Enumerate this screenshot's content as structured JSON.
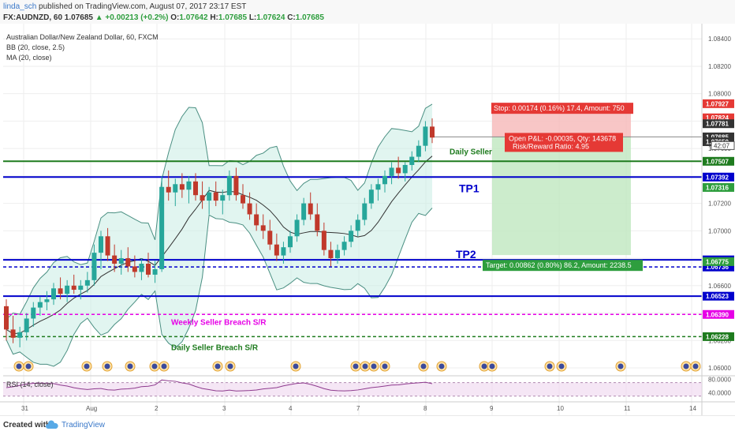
{
  "header": {
    "user": "linda_sch",
    "published": "published on TradingView.com, August 07, 2017 23:17 EST",
    "symbol": "FX:AUDNZD, 60",
    "price": "1.07685",
    "change": "+0.00213 (+0.2%)",
    "ohlc_o_label": "O:",
    "ohlc_o": "1.07642",
    "ohlc_h_label": "H:",
    "ohlc_h": "1.07685",
    "ohlc_l_label": "L:",
    "ohlc_l": "1.07624",
    "ohlc_c_label": "C:",
    "ohlc_c": "1.07685"
  },
  "legend": {
    "title": "Australian Dollar/New Zealand Dollar, 60, FXCM",
    "bb": "BB (20, close, 2.5)",
    "ma": "MA (20, close)",
    "rsi": "RSI (14, close)"
  },
  "footer": {
    "created": "Created with",
    "brand": "TradingView"
  },
  "colors": {
    "up": "#26a69a",
    "down": "#c0392b",
    "bb_fill": "#c9ece4",
    "bb_line": "#4a8f82",
    "ma": "#333333",
    "blue": "#0000cc",
    "green": "#1e7b1e",
    "magenta": "#e600e6",
    "stop_zone": "#f6b8b8",
    "target_zone": "#bfe7bf",
    "rsi_line": "#8e3b8e"
  },
  "chart_data": {
    "type": "candlestick",
    "y_axis": {
      "range": [
        1.06,
        1.0843
      ],
      "ticks": [
        "1.08400",
        "1.08200",
        "1.08000",
        "1.07800",
        "1.07600",
        "1.07400",
        "1.07200",
        "1.07000",
        "1.06800",
        "1.06600",
        "1.06400",
        "1.06200",
        "1.06000"
      ]
    },
    "x_axis": {
      "labels": [
        "31",
        "Aug",
        "2",
        "3",
        "4",
        "7",
        "8",
        "9",
        "10",
        "11",
        "14"
      ]
    },
    "levels": [
      {
        "name": "Daily Seller",
        "price": 1.07507,
        "label": "1.07507",
        "style": "solid",
        "color": "green",
        "text": "Daily Seller"
      },
      {
        "name": "TP1",
        "price": 1.07392,
        "label": "1.07392",
        "style": "solid",
        "color": "blue",
        "text": "TP1"
      },
      {
        "name": "TP2",
        "price": 1.06788,
        "label": "1.06788",
        "style": "solid",
        "color": "blue",
        "text": "TP2"
      },
      {
        "name": "Target",
        "price": 1.06736,
        "label": "1.06736",
        "style": "dashed",
        "color": "blue",
        "text": ""
      },
      {
        "name": "Weekly",
        "price": 1.06523,
        "label": "1.06523",
        "style": "solid",
        "color": "blue",
        "text": ""
      },
      {
        "name": "Weekly Seller Breach",
        "price": 1.0639,
        "label": "1.06390",
        "style": "dashed",
        "color": "magenta",
        "text": "Weekly Seller Breach S/R"
      },
      {
        "name": "Daily Seller Breach",
        "price": 1.06228,
        "label": "1.06228",
        "style": "dashed",
        "color": "green",
        "text": "Daily Seller Breach S/R"
      }
    ],
    "axis_price_labels": [
      {
        "price": 1.07927,
        "label": "1.07927",
        "color": "#e53935"
      },
      {
        "price": 1.07824,
        "label": "1.07824",
        "color": "#e53935"
      },
      {
        "price": 1.07781,
        "label": "1.07781",
        "color": "#333333"
      },
      {
        "price": 1.07685,
        "label": "1.07685",
        "color": "#333333"
      },
      {
        "price": 1.0765,
        "label": "1.07650",
        "color": "#333333"
      },
      {
        "price": 1.07316,
        "label": "1.07316",
        "color": "#2e9e3e"
      },
      {
        "price": 1.06775,
        "label": "1.06775",
        "color": "#2e9e3e"
      }
    ],
    "countdown": "42:07",
    "position": {
      "entry": 1.07685,
      "stop": 1.07859,
      "target": 1.06823,
      "stop_label": "Stop: 0.00174 (0.16%) 17.4, Amount: 750",
      "target_label": "Target: 0.00862 (0.80%) 86.2, Amount: 2238.5",
      "pnl_label": "Open P&L: -0.00035, Qty: 143678",
      "rr_label": "Risk/Reward Ratio: 4.95"
    },
    "rsi": {
      "ticks": [
        "80.0000",
        "40.0000"
      ],
      "range": [
        20,
        90
      ],
      "upper": 70,
      "lower": 30
    },
    "candles": [
      [
        1.0645,
        1.065,
        1.062,
        1.0628
      ],
      [
        1.0628,
        1.0638,
        1.0618,
        1.0622
      ],
      [
        1.0622,
        1.063,
        1.0615,
        1.0626
      ],
      [
        1.0626,
        1.064,
        1.062,
        1.0636
      ],
      [
        1.0636,
        1.0648,
        1.063,
        1.0644
      ],
      [
        1.0644,
        1.0652,
        1.0638,
        1.0648
      ],
      [
        1.0648,
        1.0656,
        1.0642,
        1.065
      ],
      [
        1.065,
        1.0662,
        1.0646,
        1.0658
      ],
      [
        1.0658,
        1.0666,
        1.065,
        1.0654
      ],
      [
        1.0654,
        1.0664,
        1.0648,
        1.066
      ],
      [
        1.066,
        1.0668,
        1.0654,
        1.0657
      ],
      [
        1.0657,
        1.0664,
        1.065,
        1.066
      ],
      [
        1.066,
        1.067,
        1.0655,
        1.0664
      ],
      [
        1.0664,
        1.069,
        1.066,
        1.0684
      ],
      [
        1.0684,
        1.07,
        1.0672,
        1.0696
      ],
      [
        1.0696,
        1.0702,
        1.0678,
        1.0682
      ],
      [
        1.0682,
        1.069,
        1.067,
        1.0676
      ],
      [
        1.0676,
        1.0686,
        1.0668,
        1.068
      ],
      [
        1.068,
        1.0688,
        1.067,
        1.0674
      ],
      [
        1.0674,
        1.0682,
        1.0666,
        1.067
      ],
      [
        1.067,
        1.068,
        1.0664,
        1.0676
      ],
      [
        1.0676,
        1.0684,
        1.0666,
        1.0668
      ],
      [
        1.0668,
        1.0678,
        1.0662,
        1.0672
      ],
      [
        1.0672,
        1.074,
        1.067,
        1.0732
      ],
      [
        1.0732,
        1.0744,
        1.0722,
        1.0728
      ],
      [
        1.0728,
        1.0738,
        1.0718,
        1.0734
      ],
      [
        1.0734,
        1.0742,
        1.0724,
        1.073
      ],
      [
        1.073,
        1.074,
        1.072,
        1.0736
      ],
      [
        1.0736,
        1.0742,
        1.0722,
        1.0726
      ],
      [
        1.0726,
        1.0736,
        1.0716,
        1.0722
      ],
      [
        1.0722,
        1.0732,
        1.0712,
        1.0728
      ],
      [
        1.0728,
        1.0736,
        1.0718,
        1.0722
      ],
      [
        1.0722,
        1.073,
        1.0712,
        1.0726
      ],
      [
        1.0726,
        1.0744,
        1.0722,
        1.074
      ],
      [
        1.074,
        1.0746,
        1.0722,
        1.0726
      ],
      [
        1.0726,
        1.0734,
        1.0716,
        1.072
      ],
      [
        1.072,
        1.0728,
        1.0708,
        1.0712
      ],
      [
        1.0712,
        1.072,
        1.07,
        1.0704
      ],
      [
        1.0704,
        1.0712,
        1.0694,
        1.07
      ],
      [
        1.07,
        1.0708,
        1.0686,
        1.069
      ],
      [
        1.069,
        1.0698,
        1.0678,
        1.0682
      ],
      [
        1.0682,
        1.0692,
        1.0676,
        1.0688
      ],
      [
        1.0688,
        1.07,
        1.0684,
        1.0696
      ],
      [
        1.0696,
        1.0712,
        1.0692,
        1.0708
      ],
      [
        1.0708,
        1.0724,
        1.0704,
        1.072
      ],
      [
        1.072,
        1.0728,
        1.0708,
        1.0712
      ],
      [
        1.0712,
        1.072,
        1.0696,
        1.07
      ],
      [
        1.07,
        1.0706,
        1.0682,
        1.0686
      ],
      [
        1.0686,
        1.0692,
        1.0674,
        1.068
      ],
      [
        1.068,
        1.069,
        1.0676,
        1.0686
      ],
      [
        1.0686,
        1.0696,
        1.0682,
        1.0692
      ],
      [
        1.0692,
        1.0704,
        1.0688,
        1.07
      ],
      [
        1.07,
        1.0712,
        1.0696,
        1.0708
      ],
      [
        1.0708,
        1.0724,
        1.0704,
        1.072
      ],
      [
        1.072,
        1.0734,
        1.0716,
        1.073
      ],
      [
        1.073,
        1.0738,
        1.0722,
        1.0734
      ],
      [
        1.0734,
        1.0744,
        1.0728,
        1.074
      ],
      [
        1.074,
        1.075,
        1.0734,
        1.0746
      ],
      [
        1.0746,
        1.0754,
        1.0738,
        1.0742
      ],
      [
        1.0742,
        1.075,
        1.0736,
        1.0748
      ],
      [
        1.0748,
        1.0758,
        1.0744,
        1.0754
      ],
      [
        1.0754,
        1.0766,
        1.075,
        1.0762
      ],
      [
        1.0762,
        1.078,
        1.0758,
        1.0776
      ],
      [
        1.0776,
        1.0782,
        1.0764,
        1.0768
      ]
    ]
  }
}
